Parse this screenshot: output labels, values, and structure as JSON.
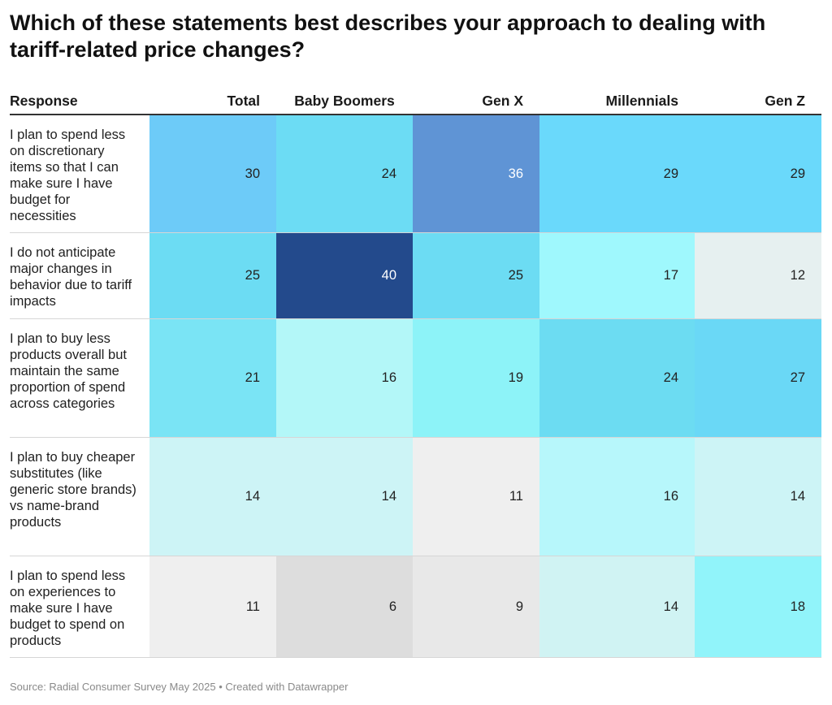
{
  "title": "Which of these statements best describes your approach to dealing with tariff-related price changes?",
  "footer": "Source: Radial Consumer Survey May 2025 • Created with Datawrapper",
  "chart_data": {
    "type": "table",
    "title": "Which of these statements best describes your approach to dealing with tariff-related price changes?",
    "columns": [
      "Response",
      "Total",
      "Baby Boomers",
      "Gen X",
      "Millennials",
      "Gen Z"
    ],
    "rows": [
      {
        "label": "I plan to spend less on discretionary items so that I can make sure I have budget for necessities",
        "values": [
          30,
          24,
          36,
          29,
          29
        ],
        "colors": [
          "#6dcbf8",
          "#6cdcf4",
          "#5f94d5",
          "#6ad9fb",
          "#6ad9fb"
        ]
      },
      {
        "label": "I do not anticipate major changes in behavior due to tariff impacts",
        "values": [
          25,
          40,
          25,
          17,
          12
        ],
        "colors": [
          "#6cdcf3",
          "#234a8c",
          "#6cdcf3",
          "#9ff8fd",
          "#e6f0f0"
        ]
      },
      {
        "label": "I plan to buy less products overall but maintain the same proportion of spend across categories",
        "values": [
          21,
          16,
          19,
          24,
          27
        ],
        "colors": [
          "#7ae4f5",
          "#b3f7f8",
          "#8df3f8",
          "#6cdcf2",
          "#6ad8f6"
        ]
      },
      {
        "label": "I plan to buy cheaper substitutes (like generic store brands) vs name-brand products",
        "values": [
          14,
          14,
          11,
          16,
          14
        ],
        "colors": [
          "#cdf4f6",
          "#cdf4f6",
          "#efefef",
          "#b7f7fb",
          "#cdf4f6"
        ]
      },
      {
        "label": "I plan to spend less on experiences to make sure I have budget to spend on products",
        "values": [
          11,
          6,
          9,
          14,
          18
        ],
        "colors": [
          "#efefef",
          "#dddddd",
          "#e8e8e8",
          "#d0f3f3",
          "#91f4fa"
        ]
      }
    ],
    "text_colors": {
      "light_bg": "#222222",
      "dark_bg": "#ffffff"
    }
  }
}
